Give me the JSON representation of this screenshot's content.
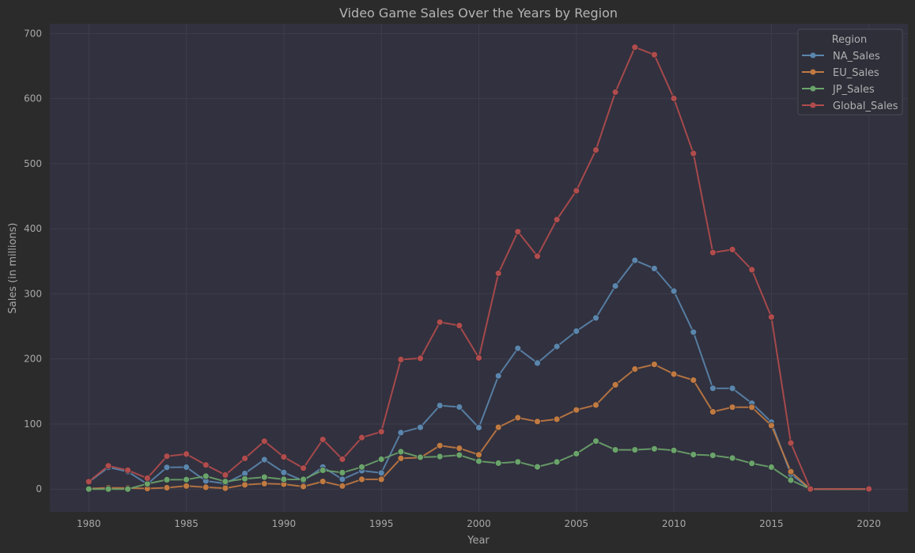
{
  "chart_data": {
    "type": "line",
    "title": "Video Game Sales Over the Years by Region",
    "xlabel": "Year",
    "ylabel": "Sales (in millions)",
    "xlim": [
      1978,
      2022
    ],
    "ylim": [
      -35,
      715
    ],
    "x_ticks": [
      1980,
      1985,
      1990,
      1995,
      2000,
      2005,
      2010,
      2015,
      2020
    ],
    "y_ticks": [
      0,
      100,
      200,
      300,
      400,
      500,
      600,
      700
    ],
    "grid": true,
    "legend": {
      "title": "Region",
      "placement": "top-right"
    },
    "x": [
      1980,
      1981,
      1982,
      1983,
      1984,
      1985,
      1986,
      1987,
      1988,
      1989,
      1990,
      1991,
      1992,
      1993,
      1994,
      1995,
      1996,
      1997,
      1998,
      1999,
      2000,
      2001,
      2002,
      2003,
      2004,
      2005,
      2006,
      2007,
      2008,
      2009,
      2010,
      2011,
      2012,
      2013,
      2014,
      2015,
      2016,
      2017,
      2020
    ],
    "series": [
      {
        "name": "NA_Sales",
        "color": "#5a86ad",
        "values": [
          10.6,
          33.4,
          26.9,
          7.8,
          33.3,
          33.7,
          12.5,
          8.5,
          23.9,
          45.2,
          25.5,
          12.8,
          33.9,
          15.1,
          28.2,
          24.8,
          86.8,
          94.8,
          128.4,
          126.1,
          94.5,
          173.9,
          216.2,
          193.6,
          219.0,
          242.6,
          263.1,
          312.1,
          351.4,
          338.9,
          304.2,
          241.2,
          154.9,
          154.8,
          131.9,
          102.8,
          22.7,
          0.0,
          0.3
        ]
      },
      {
        "name": "EU_Sales",
        "color": "#c07a41",
        "values": [
          0.7,
          1.9,
          1.6,
          0.8,
          2.1,
          4.7,
          2.8,
          1.4,
          6.6,
          8.4,
          7.6,
          3.9,
          11.7,
          4.7,
          14.9,
          14.9,
          47.3,
          48.3,
          66.9,
          62.7,
          52.8,
          94.9,
          109.7,
          103.8,
          107.3,
          121.6,
          129.2,
          160.2,
          184.4,
          191.6,
          176.6,
          167.4,
          118.8,
          125.8,
          125.7,
          97.7,
          26.8,
          0.0,
          0.0
        ]
      },
      {
        "name": "JP_Sales",
        "color": "#6aa46a",
        "values": [
          0.0,
          0.0,
          0.0,
          8.1,
          14.3,
          14.6,
          19.8,
          11.6,
          15.8,
          18.4,
          14.9,
          14.8,
          28.9,
          25.3,
          33.9,
          45.8,
          57.4,
          48.9,
          50.0,
          52.3,
          42.8,
          39.9,
          41.8,
          34.2,
          41.7,
          54.3,
          73.7,
          60.3,
          60.3,
          61.9,
          59.5,
          53.0,
          51.8,
          47.6,
          39.5,
          33.7,
          13.7,
          0.0,
          0.0
        ]
      },
      {
        "name": "Global_Sales",
        "color": "#b14c4c",
        "values": [
          11.4,
          35.8,
          28.9,
          16.8,
          50.4,
          53.9,
          37.1,
          21.7,
          47.2,
          73.5,
          49.4,
          32.2,
          76.2,
          45.9,
          79.2,
          88.1,
          199.1,
          200.9,
          256.5,
          251.3,
          201.6,
          331.5,
          395.5,
          357.9,
          414.0,
          458.4,
          521.0,
          609.9,
          678.9,
          667.3,
          600.3,
          515.8,
          363.5,
          368.1,
          337.1,
          264.4,
          70.9,
          0.1,
          0.3
        ]
      }
    ]
  }
}
